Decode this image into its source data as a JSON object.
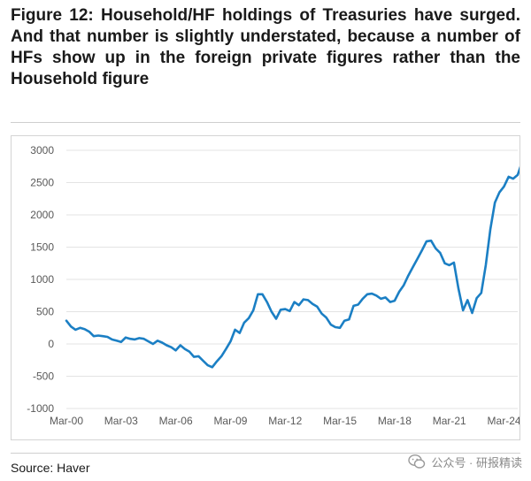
{
  "figure": {
    "title": "Figure 12: Household/HF holdings of Treasuries have surged. And that number is slightly understated, because a number of HFs show up in the foreign private figures rather than the Household figure",
    "source": "Source: Haver",
    "watermark": "公众号 · 研报精读"
  },
  "colors": {
    "line": "#1b7fc4",
    "gridline": "#e3e3e3",
    "axis_text": "#595959"
  },
  "chart_data": {
    "type": "line",
    "title": "",
    "xlabel": "",
    "ylabel": "",
    "ylim": [
      -1000,
      3000
    ],
    "yticks": [
      3000,
      2500,
      2000,
      1500,
      1000,
      500,
      0,
      -500,
      -1000
    ],
    "xlim": [
      2000.0,
      2024.75
    ],
    "xticks": [
      {
        "x": 2000,
        "label": "Mar-00"
      },
      {
        "x": 2003,
        "label": "Mar-03"
      },
      {
        "x": 2006,
        "label": "Mar-06"
      },
      {
        "x": 2009,
        "label": "Mar-09"
      },
      {
        "x": 2012,
        "label": "Mar-12"
      },
      {
        "x": 2015,
        "label": "Mar-15"
      },
      {
        "x": 2018,
        "label": "Mar-18"
      },
      {
        "x": 2021,
        "label": "Mar-21"
      },
      {
        "x": 2024,
        "label": "Mar-24"
      }
    ],
    "grid": true,
    "legend": "none",
    "series": [
      {
        "points": [
          [
            2000.0,
            360
          ],
          [
            2000.25,
            270
          ],
          [
            2000.5,
            220
          ],
          [
            2000.75,
            250
          ],
          [
            2001.0,
            230
          ],
          [
            2001.25,
            190
          ],
          [
            2001.5,
            120
          ],
          [
            2001.75,
            130
          ],
          [
            2002.0,
            120
          ],
          [
            2002.25,
            110
          ],
          [
            2002.5,
            70
          ],
          [
            2002.75,
            50
          ],
          [
            2003.0,
            30
          ],
          [
            2003.25,
            100
          ],
          [
            2003.5,
            80
          ],
          [
            2003.75,
            70
          ],
          [
            2004.0,
            90
          ],
          [
            2004.25,
            80
          ],
          [
            2004.5,
            40
          ],
          [
            2004.75,
            0
          ],
          [
            2005.0,
            50
          ],
          [
            2005.25,
            20
          ],
          [
            2005.5,
            -20
          ],
          [
            2005.75,
            -50
          ],
          [
            2006.0,
            -100
          ],
          [
            2006.25,
            -20
          ],
          [
            2006.5,
            -80
          ],
          [
            2006.75,
            -120
          ],
          [
            2007.0,
            -200
          ],
          [
            2007.25,
            -190
          ],
          [
            2007.5,
            -260
          ],
          [
            2007.75,
            -330
          ],
          [
            2008.0,
            -360
          ],
          [
            2008.25,
            -270
          ],
          [
            2008.5,
            -190
          ],
          [
            2008.75,
            -80
          ],
          [
            2009.0,
            40
          ],
          [
            2009.25,
            220
          ],
          [
            2009.5,
            170
          ],
          [
            2009.75,
            330
          ],
          [
            2010.0,
            400
          ],
          [
            2010.25,
            520
          ],
          [
            2010.5,
            770
          ],
          [
            2010.75,
            770
          ],
          [
            2011.0,
            650
          ],
          [
            2011.25,
            500
          ],
          [
            2011.5,
            390
          ],
          [
            2011.75,
            530
          ],
          [
            2012.0,
            540
          ],
          [
            2012.25,
            510
          ],
          [
            2012.5,
            650
          ],
          [
            2012.75,
            600
          ],
          [
            2013.0,
            690
          ],
          [
            2013.25,
            680
          ],
          [
            2013.5,
            620
          ],
          [
            2013.75,
            580
          ],
          [
            2014.0,
            470
          ],
          [
            2014.25,
            410
          ],
          [
            2014.5,
            300
          ],
          [
            2014.75,
            260
          ],
          [
            2015.0,
            250
          ],
          [
            2015.25,
            360
          ],
          [
            2015.5,
            380
          ],
          [
            2015.75,
            590
          ],
          [
            2016.0,
            610
          ],
          [
            2016.25,
            700
          ],
          [
            2016.5,
            770
          ],
          [
            2016.75,
            780
          ],
          [
            2017.0,
            750
          ],
          [
            2017.25,
            700
          ],
          [
            2017.5,
            720
          ],
          [
            2017.75,
            650
          ],
          [
            2018.0,
            670
          ],
          [
            2018.25,
            810
          ],
          [
            2018.5,
            910
          ],
          [
            2018.75,
            1060
          ],
          [
            2019.0,
            1190
          ],
          [
            2019.25,
            1320
          ],
          [
            2019.5,
            1450
          ],
          [
            2019.75,
            1590
          ],
          [
            2020.0,
            1600
          ],
          [
            2020.25,
            1480
          ],
          [
            2020.5,
            1410
          ],
          [
            2020.75,
            1250
          ],
          [
            2021.0,
            1220
          ],
          [
            2021.25,
            1260
          ],
          [
            2021.5,
            860
          ],
          [
            2021.75,
            520
          ],
          [
            2022.0,
            680
          ],
          [
            2022.25,
            480
          ],
          [
            2022.5,
            710
          ],
          [
            2022.75,
            790
          ],
          [
            2023.0,
            1220
          ],
          [
            2023.25,
            1780
          ],
          [
            2023.5,
            2190
          ],
          [
            2023.75,
            2350
          ],
          [
            2024.0,
            2440
          ],
          [
            2024.25,
            2590
          ],
          [
            2024.5,
            2560
          ],
          [
            2024.75,
            2620
          ],
          [
            2025.0,
            2830
          ]
        ]
      }
    ]
  }
}
